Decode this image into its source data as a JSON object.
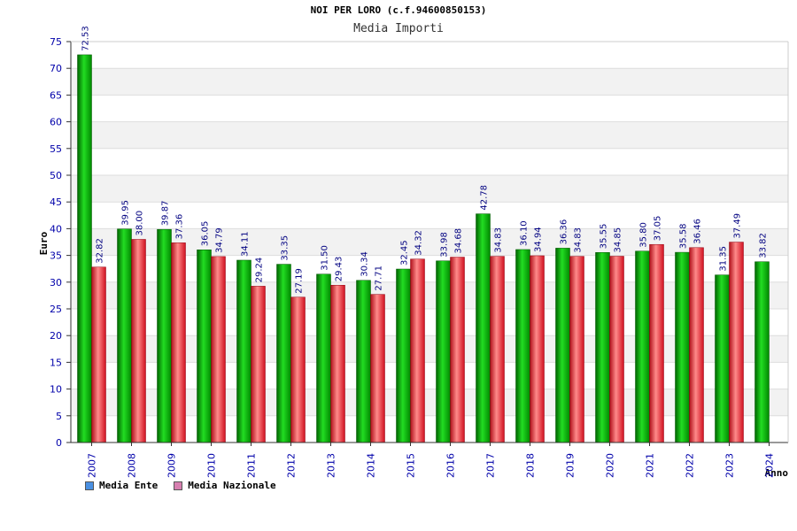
{
  "header": {
    "title": "NOI PER LORO (c.f.94600850153)",
    "subtitle": "Media Importi"
  },
  "legend": {
    "items": [
      {
        "label": "Media Ente",
        "color": "#4a90e2"
      },
      {
        "label": "Media Nazionale",
        "color": "#d77fb0"
      }
    ]
  },
  "colors": {
    "ente_bar": "#00b400",
    "nazionale_bar": "#e8202a",
    "axis_text": "#0000aa",
    "value_text": "#000080"
  },
  "chart_data": {
    "type": "bar",
    "title": "NOI PER LORO (c.f.94600850153)",
    "subtitle": "Media Importi",
    "xlabel": "Anno",
    "ylabel": "Euro",
    "ylim": [
      0,
      75
    ],
    "yticks": [
      0,
      5,
      10,
      15,
      20,
      25,
      30,
      35,
      40,
      45,
      50,
      55,
      60,
      65,
      70,
      75
    ],
    "grid": true,
    "legend_position": "bottom-left",
    "categories": [
      "2007",
      "2008",
      "2009",
      "2010",
      "2011",
      "2012",
      "2013",
      "2014",
      "2015",
      "2016",
      "2017",
      "2018",
      "2019",
      "2020",
      "2021",
      "2022",
      "2023",
      "2024"
    ],
    "series": [
      {
        "name": "Media Ente",
        "values": [
          72.53,
          39.95,
          39.87,
          36.05,
          34.11,
          33.35,
          31.5,
          30.34,
          32.45,
          33.98,
          42.78,
          36.1,
          36.36,
          35.55,
          35.8,
          35.58,
          31.35,
          33.82
        ],
        "labels": [
          "72.53",
          "39.95",
          "39.87",
          "36.05",
          "34.11",
          "33.35",
          "31.50",
          "30.34",
          "32.45",
          "33.98",
          "42.78",
          "36.10",
          "36.36",
          "35.55",
          "35.80",
          "35.58",
          "31.35",
          "33.82"
        ]
      },
      {
        "name": "Media Nazionale",
        "values": [
          32.82,
          38.0,
          37.36,
          34.79,
          29.24,
          27.19,
          29.43,
          27.71,
          34.32,
          34.68,
          34.83,
          34.94,
          34.83,
          34.85,
          37.05,
          36.46,
          37.49,
          null
        ],
        "labels": [
          "32.82",
          "38.00",
          "37.36",
          "34.79",
          "29.24",
          "27.19",
          "29.43",
          "27.71",
          "34.32",
          "34.68",
          "34.83",
          "34.94",
          "34.83",
          "34.85",
          "37.05",
          "36.46",
          "37.49",
          ""
        ]
      }
    ]
  }
}
